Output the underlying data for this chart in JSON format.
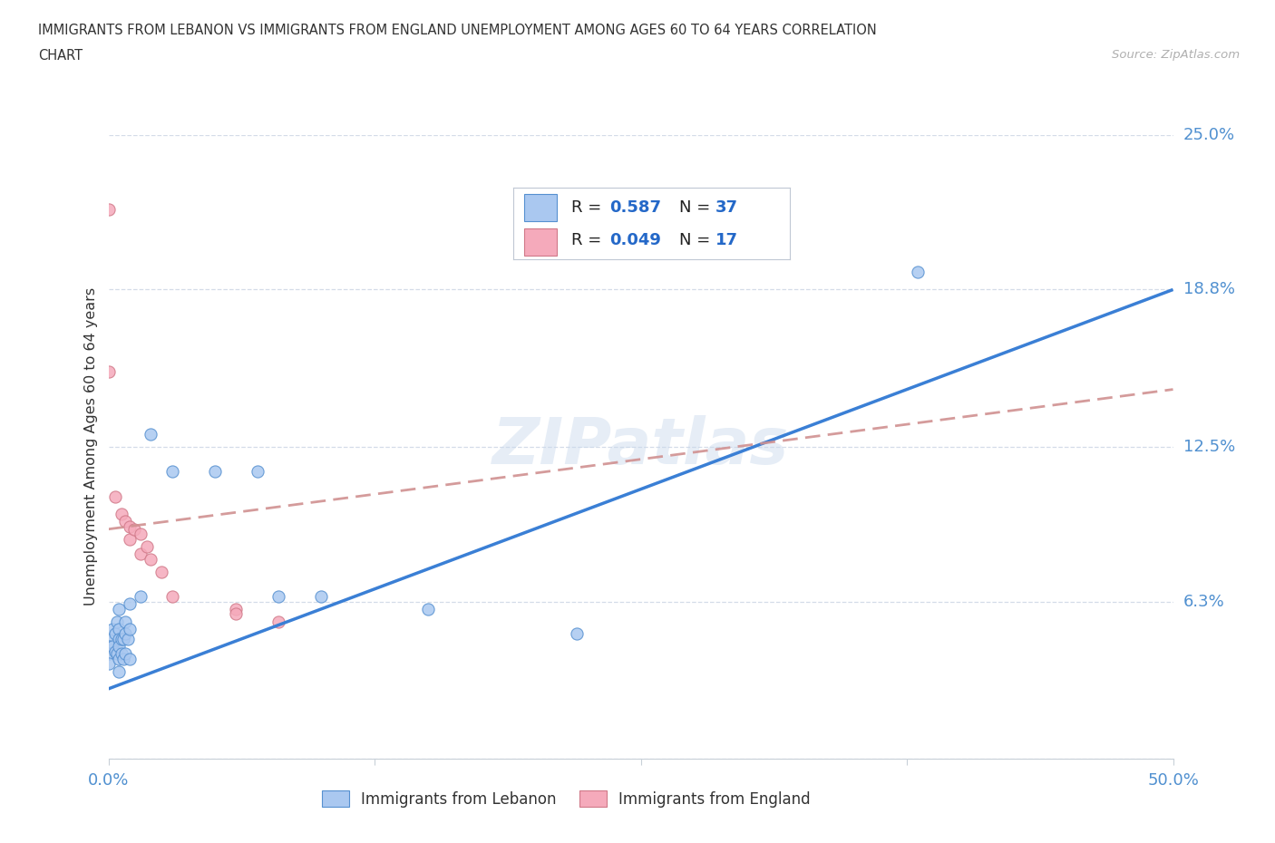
{
  "title_line1": "IMMIGRANTS FROM LEBANON VS IMMIGRANTS FROM ENGLAND UNEMPLOYMENT AMONG AGES 60 TO 64 YEARS CORRELATION",
  "title_line2": "CHART",
  "source": "Source: ZipAtlas.com",
  "ylabel": "Unemployment Among Ages 60 to 64 years",
  "xlim": [
    0.0,
    0.5
  ],
  "ylim": [
    0.0,
    0.25
  ],
  "xtick_vals": [
    0.0,
    0.125,
    0.25,
    0.375,
    0.5
  ],
  "xtick_labels": [
    "0.0%",
    "",
    "",
    "",
    "50.0%"
  ],
  "ytick_vals": [
    0.0,
    0.063,
    0.125,
    0.188,
    0.25
  ],
  "ytick_labels": [
    "",
    "6.3%",
    "12.5%",
    "18.8%",
    "25.0%"
  ],
  "R_lebanon": 0.587,
  "N_lebanon": 37,
  "R_england": 0.049,
  "N_england": 17,
  "watermark": "ZIPatlas",
  "lebanon_fill": "#aac8f0",
  "lebanon_edge": "#5590d0",
  "england_fill": "#f5aabb",
  "england_edge": "#d07888",
  "lebanon_line": "#3a7fd5",
  "england_line": "#d09090",
  "grid_color": "#d4dce8",
  "axis_color": "#c8d0d8",
  "label_color": "#5090d0",
  "text_color": "#333333",
  "source_color": "#b0b0b0",
  "lebanon_scatter_x": [
    0.0,
    0.0,
    0.0,
    0.0,
    0.002,
    0.002,
    0.003,
    0.003,
    0.004,
    0.004,
    0.005,
    0.005,
    0.005,
    0.005,
    0.005,
    0.005,
    0.006,
    0.006,
    0.007,
    0.007,
    0.008,
    0.008,
    0.008,
    0.009,
    0.01,
    0.01,
    0.01,
    0.015,
    0.02,
    0.03,
    0.05,
    0.07,
    0.08,
    0.1,
    0.15,
    0.22,
    0.38
  ],
  "lebanon_scatter_y": [
    0.048,
    0.045,
    0.042,
    0.038,
    0.052,
    0.045,
    0.05,
    0.043,
    0.055,
    0.042,
    0.06,
    0.052,
    0.048,
    0.045,
    0.04,
    0.035,
    0.048,
    0.042,
    0.048,
    0.04,
    0.055,
    0.05,
    0.042,
    0.048,
    0.062,
    0.052,
    0.04,
    0.065,
    0.13,
    0.115,
    0.115,
    0.115,
    0.065,
    0.065,
    0.06,
    0.05,
    0.195
  ],
  "england_scatter_x": [
    0.0,
    0.0,
    0.003,
    0.006,
    0.008,
    0.01,
    0.01,
    0.012,
    0.015,
    0.015,
    0.018,
    0.02,
    0.025,
    0.03,
    0.06,
    0.06,
    0.08
  ],
  "england_scatter_y": [
    0.22,
    0.155,
    0.105,
    0.098,
    0.095,
    0.093,
    0.088,
    0.092,
    0.09,
    0.082,
    0.085,
    0.08,
    0.075,
    0.065,
    0.06,
    0.058,
    0.055
  ],
  "lebanon_trend_x": [
    0.0,
    0.5
  ],
  "lebanon_trend_y": [
    0.028,
    0.188
  ],
  "england_trend_x": [
    0.0,
    0.5
  ],
  "england_trend_y": [
    0.092,
    0.148
  ]
}
